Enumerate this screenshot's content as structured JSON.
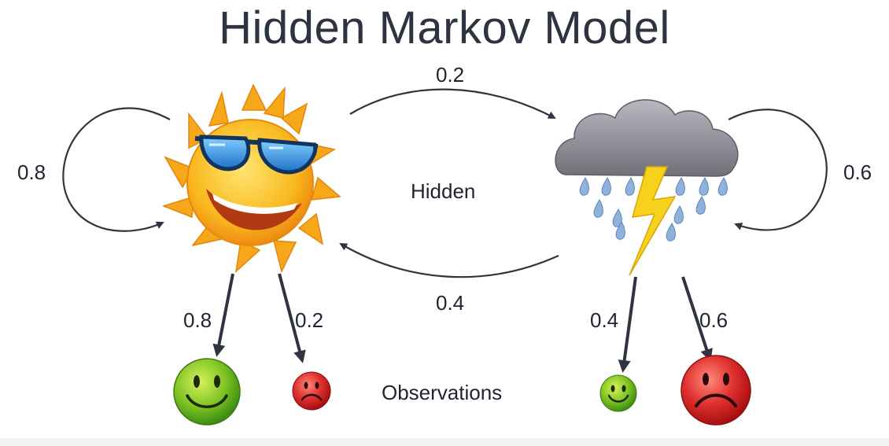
{
  "title": "Hidden Markov Model",
  "hidden_label": "Hidden",
  "observations_label": "Observations",
  "states": [
    {
      "name": "sunny",
      "icon": "sun-with-sunglasses-icon"
    },
    {
      "name": "rainy",
      "icon": "storm-cloud-icon"
    }
  ],
  "transitions": {
    "sunny_to_sunny": "0.8",
    "sunny_to_rainy": "0.2",
    "rainy_to_sunny": "0.4",
    "rainy_to_rainy": "0.6"
  },
  "emissions": {
    "sunny_happy": "0.8",
    "sunny_sad": "0.2",
    "rainy_happy": "0.4",
    "rainy_sad": "0.6"
  },
  "colors": {
    "arrow": "#2f3540",
    "sun": "#f7b21c",
    "glasses": "#2a8fe0",
    "cloud": "#8c8c94",
    "rain": "#8fb2dc",
    "bolt": "#f6d21c",
    "happy": "#73c21e",
    "sad": "#d42a2a"
  }
}
